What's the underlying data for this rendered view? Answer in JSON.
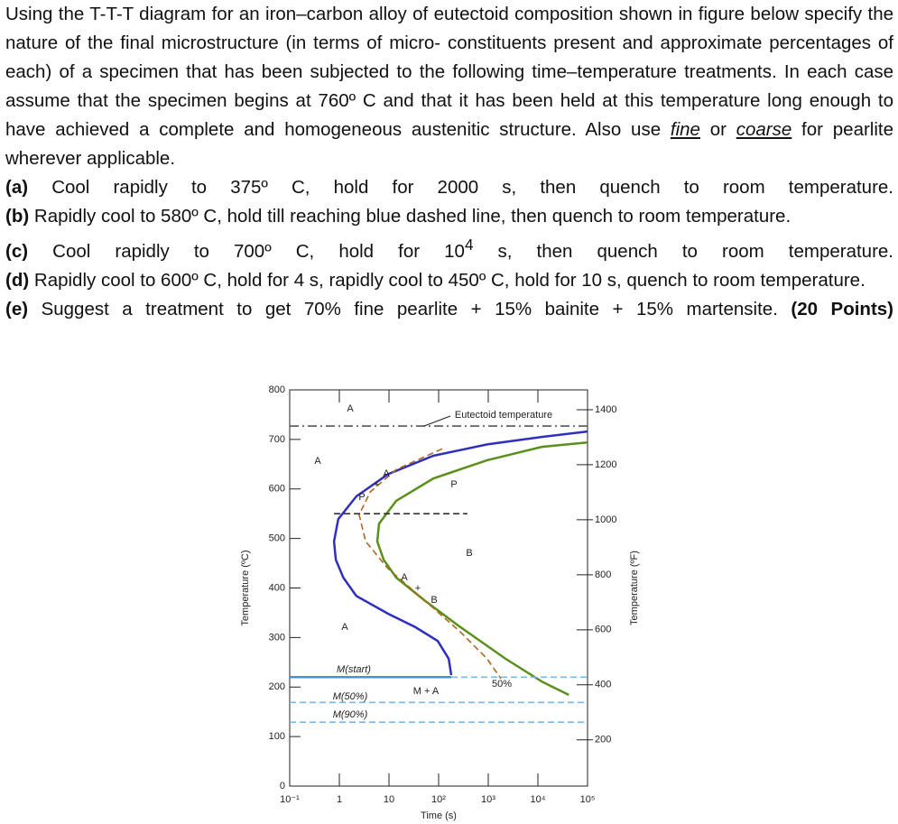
{
  "question": {
    "intro": {
      "text": "Using the T-T-T diagram for an iron–carbon alloy of eutectoid composition shown in figure below specify the nature of the final microstructure (in terms of micro- constituents present and approximate percentages of each) of a specimen that has been subjected to the following time–temperature treatments. In each case assume that the specimen begins at 760º C and that it has been held at this temperature long enough to have achieved a complete and homogeneous austenitic structure. Also use ",
      "fine": "fine",
      "or": " or ",
      "coarse": "coarse",
      "end": " for pearlite wherever applicable."
    },
    "parts": [
      {
        "label": "(a)",
        "text": "Cool rapidly to 375º C, hold for 2000 s, then quench to room temperature."
      },
      {
        "label": "(b)",
        "text": "Rapidly cool to 580º C, hold till reaching blue dashed line, then quench to room temperature."
      },
      {
        "label": "(c)",
        "text": "Cool rapidly to 700º C, hold for 10",
        "sup": "4",
        "rest": " s, then quench to room temperature."
      },
      {
        "label": "(d)",
        "text": "Rapidly cool to 600º C, hold for 4 s, rapidly cool to 450º C, hold for 10 s,  quench to room temperature."
      },
      {
        "label": "(e)",
        "text": "Suggest a treatment to get 70% fine pearlite + 15% bainite + 15% martensite.",
        "points": "(20 Points)"
      }
    ]
  },
  "chart_data": {
    "type": "line",
    "xlabel": "Time (s)",
    "ylabel": "Temperature (ºC)",
    "y2label": "Temperature (ºF)",
    "xscale": "log",
    "xlim": [
      0.1,
      100000
    ],
    "xticks": [
      {
        "value": 0.1,
        "label": "10⁻¹"
      },
      1,
      10,
      {
        "value": 100,
        "label": "10²"
      },
      {
        "value": 1000,
        "label": "10³"
      },
      {
        "value": 10000,
        "label": "10⁴"
      },
      {
        "value": 100000,
        "label": "10⁵"
      }
    ],
    "ylim": [
      0,
      800
    ],
    "yticks": [
      0,
      100,
      200,
      300,
      400,
      500,
      600,
      700,
      800
    ],
    "y2lim": [
      32,
      1472
    ],
    "y2ticks": [
      200,
      400,
      600,
      800,
      1000,
      1200,
      1400
    ],
    "series": [
      {
        "color": "#2f2fbf",
        "dash": "solid",
        "x": [
          100000,
          12000,
          950,
          78,
          9.6,
          2.2,
          0.95,
          0.78,
          0.85,
          1.2,
          2.2,
          9.6,
          34,
          96,
          160,
          180
        ],
        "values": [
          716,
          705,
          690,
          667,
          630,
          585,
          539,
          494,
          457,
          421,
          384,
          348,
          321,
          293,
          257,
          224
        ]
      },
      {
        "color": "#5b8f1c",
        "dash": "solid",
        "x": [
          100000,
          12000,
          950,
          78,
          14,
          6.3,
          5.8,
          7.8,
          14,
          52,
          275,
          2240,
          12000,
          42000
        ],
        "values": [
          694,
          685,
          658,
          621,
          576,
          530,
          494,
          457,
          421,
          375,
          321,
          257,
          211,
          184
        ]
      },
      {
        "color": "#b0681c",
        "dash": "dashed",
        "x": [
          118,
          14,
          4.2,
          2.5,
          3.4,
          9.6,
          52,
          275,
          950,
          1800
        ],
        "values": [
          681,
          639,
          594,
          548,
          494,
          439,
          375,
          311,
          257,
          217
        ]
      },
      {
        "color": "#555555",
        "dash": "dashdot",
        "x": [
          0.1,
          100000
        ],
        "values": [
          727,
          727
        ]
      },
      {
        "color": "#333333",
        "dash": "dashed",
        "x": [
          0.78,
          380
        ],
        "values": [
          550,
          550
        ]
      },
      {
        "color": "#4a90d9",
        "dash": "solid",
        "x": [
          0.1,
          180
        ],
        "values": [
          220,
          220
        ]
      },
      {
        "color": "#7ab8e8",
        "dash": "dashed",
        "x": [
          180,
          100000
        ],
        "values": [
          220,
          220
        ]
      },
      {
        "color": "#7ab8e8",
        "dash": "dashed",
        "x": [
          0.1,
          100000
        ],
        "values": [
          169,
          169
        ]
      },
      {
        "color": "#7ab8e8",
        "dash": "dashed",
        "x": [
          0.1,
          100000
        ],
        "values": [
          129,
          129
        ]
      }
    ],
    "annotations": [
      "A",
      "Eutectoid temperature",
      "A",
      "P",
      "B",
      "A",
      "M(start)",
      "M + A",
      "50%",
      "M(50%)",
      "M(90%)",
      "A",
      "+",
      "P",
      "A",
      "+",
      "B"
    ]
  }
}
